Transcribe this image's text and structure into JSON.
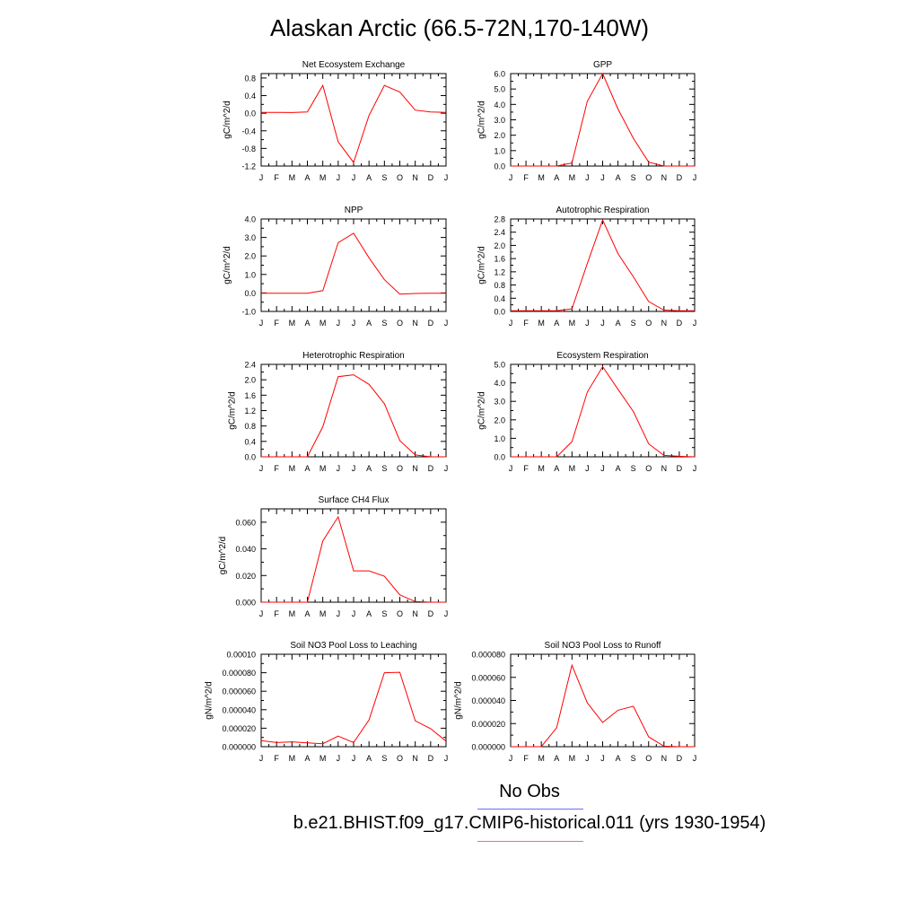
{
  "title": "Alaskan Arctic (66.5-72N,170-140W)",
  "legend": {
    "obs_label": "No Obs",
    "model_label": "b.e21.BHIST.f09_g17.CMIP6-historical.011 (yrs 1930-1954)",
    "obs_color": "#6b6bff",
    "model_color": "#ff6b6b"
  },
  "months": [
    "J",
    "F",
    "M",
    "A",
    "M",
    "J",
    "J",
    "A",
    "S",
    "O",
    "N",
    "D",
    "J"
  ],
  "chart_data": [
    {
      "type": "line",
      "title": "Net Ecosystem Exchange",
      "ylabel": "gC/m^2/d",
      "ylim": [
        -1.2,
        0.9
      ],
      "yticks": [
        0.8,
        0.4,
        0.0,
        -0.4,
        -0.8,
        -1.2
      ],
      "ytick_labels": [
        "0.8",
        "0.4",
        "0.0",
        "-0.4",
        "-0.8",
        "-1.2"
      ],
      "series": [
        {
          "color": "#ff0000",
          "values": [
            0.02,
            0.02,
            0.015,
            0.03,
            0.63,
            -0.65,
            -1.12,
            -0.05,
            0.63,
            0.48,
            0.07,
            0.03,
            0.02
          ]
        }
      ]
    },
    {
      "type": "line",
      "title": "GPP",
      "ylabel": "gC/m^2/d",
      "ylim": [
        0,
        6.0
      ],
      "yticks": [
        6.0,
        5.0,
        4.0,
        3.0,
        2.0,
        1.0,
        0.0
      ],
      "ytick_labels": [
        "6.0",
        "5.0",
        "4.0",
        "3.0",
        "2.0",
        "1.0",
        "0.0"
      ],
      "series": [
        {
          "color": "#ff0000",
          "values": [
            0,
            0,
            0,
            0,
            0.2,
            4.2,
            6.0,
            3.7,
            1.8,
            0.25,
            0.0,
            0,
            0
          ]
        }
      ]
    },
    {
      "type": "line",
      "title": "NPP",
      "ylabel": "gC/m^2/d",
      "ylim": [
        -1.0,
        4.0
      ],
      "yticks": [
        4.0,
        3.0,
        2.0,
        1.0,
        0.0,
        -1.0
      ],
      "ytick_labels": [
        "4.0",
        "3.0",
        "2.0",
        "1.0",
        "0.0",
        "-1.0"
      ],
      "series": [
        {
          "color": "#ff0000",
          "values": [
            -0.02,
            -0.02,
            -0.02,
            -0.02,
            0.12,
            2.72,
            3.23,
            1.9,
            0.72,
            -0.07,
            -0.03,
            -0.02,
            -0.02
          ]
        }
      ]
    },
    {
      "type": "line",
      "title": "Autotrophic Respiration",
      "ylabel": "gC/m^2/d",
      "ylim": [
        0,
        2.8
      ],
      "yticks": [
        2.8,
        2.4,
        2.0,
        1.6,
        1.2,
        0.8,
        0.4,
        0.0
      ],
      "ytick_labels": [
        "2.8",
        "2.4",
        "2.0",
        "1.6",
        "1.2",
        "0.8",
        "0.4",
        "0.0"
      ],
      "series": [
        {
          "color": "#ff0000",
          "values": [
            0.02,
            0.02,
            0.02,
            0.02,
            0.08,
            1.45,
            2.77,
            1.75,
            1.05,
            0.3,
            0.04,
            0.02,
            0.02
          ]
        }
      ]
    },
    {
      "type": "line",
      "title": "Heterotrophic Respiration",
      "ylabel": "gC/m^2/d",
      "ylim": [
        0,
        2.4
      ],
      "yticks": [
        2.4,
        2.0,
        1.6,
        1.2,
        0.8,
        0.4,
        0.0
      ],
      "ytick_labels": [
        "2.4",
        "2.0",
        "1.6",
        "1.2",
        "0.8",
        "0.4",
        "0.0"
      ],
      "series": [
        {
          "color": "#ff0000",
          "values": [
            0,
            0,
            0,
            0,
            0.78,
            2.08,
            2.13,
            1.88,
            1.38,
            0.42,
            0.05,
            0.0,
            0
          ]
        }
      ]
    },
    {
      "type": "line",
      "title": "Ecosystem Respiration",
      "ylabel": "gC/m^2/d",
      "ylim": [
        0,
        5.0
      ],
      "yticks": [
        5.0,
        4.0,
        3.0,
        2.0,
        1.0,
        0.0
      ],
      "ytick_labels": [
        "5.0",
        "4.0",
        "3.0",
        "2.0",
        "1.0",
        "0.0"
      ],
      "series": [
        {
          "color": "#ff0000",
          "values": [
            0,
            0,
            0,
            0,
            0.82,
            3.5,
            4.88,
            3.65,
            2.45,
            0.7,
            0.08,
            0.03,
            0
          ]
        }
      ]
    },
    {
      "type": "line",
      "title": "Surface CH4 Flux",
      "ylabel": "gC/m^2/d",
      "ylim": [
        0,
        0.07
      ],
      "yticks": [
        0.06,
        0.04,
        0.02,
        0.0
      ],
      "ytick_labels": [
        "0.060",
        "0.040",
        "0.020",
        "0.000"
      ],
      "series": [
        {
          "color": "#ff0000",
          "values": [
            0,
            0,
            0,
            0,
            0.046,
            0.064,
            0.0235,
            0.0235,
            0.0195,
            0.0055,
            0.0005,
            0,
            0
          ]
        }
      ]
    },
    {
      "type": "line",
      "title": "Soil NO3 Pool Loss to Leaching",
      "ylabel": "gN/m^2/d",
      "ylim": [
        0,
        0.0001
      ],
      "yticks": [
        0.0001,
        8e-05,
        6e-05,
        4e-05,
        2e-05,
        0.0
      ],
      "ytick_labels": [
        "0.00010",
        "0.000080",
        "0.000060",
        "0.000040",
        "0.000020",
        "0.000000"
      ],
      "series": [
        {
          "color": "#ff0000",
          "values": [
            6.5e-06,
            4.5e-06,
            5.2e-06,
            4.2e-06,
            3.2e-06,
            1.15e-05,
            4.5e-06,
            2.9e-05,
            8e-05,
            8.05e-05,
            2.8e-05,
            1.95e-05,
            6e-06
          ]
        }
      ]
    },
    {
      "type": "line",
      "title": "Soil NO3 Pool Loss to Runoff",
      "ylabel": "gN/m^2/d",
      "ylim": [
        0,
        8e-05
      ],
      "yticks": [
        8e-05,
        6e-05,
        4e-05,
        2e-05,
        0.0
      ],
      "ytick_labels": [
        "0.000080",
        "0.000060",
        "0.000040",
        "0.000020",
        "0.000000"
      ],
      "series": [
        {
          "color": "#ff0000",
          "values": [
            0,
            0,
            0,
            1.65e-05,
            7.05e-05,
            3.8e-05,
            2.1e-05,
            3.15e-05,
            3.5e-05,
            8.5e-06,
            5e-07,
            0,
            0
          ]
        }
      ]
    }
  ]
}
